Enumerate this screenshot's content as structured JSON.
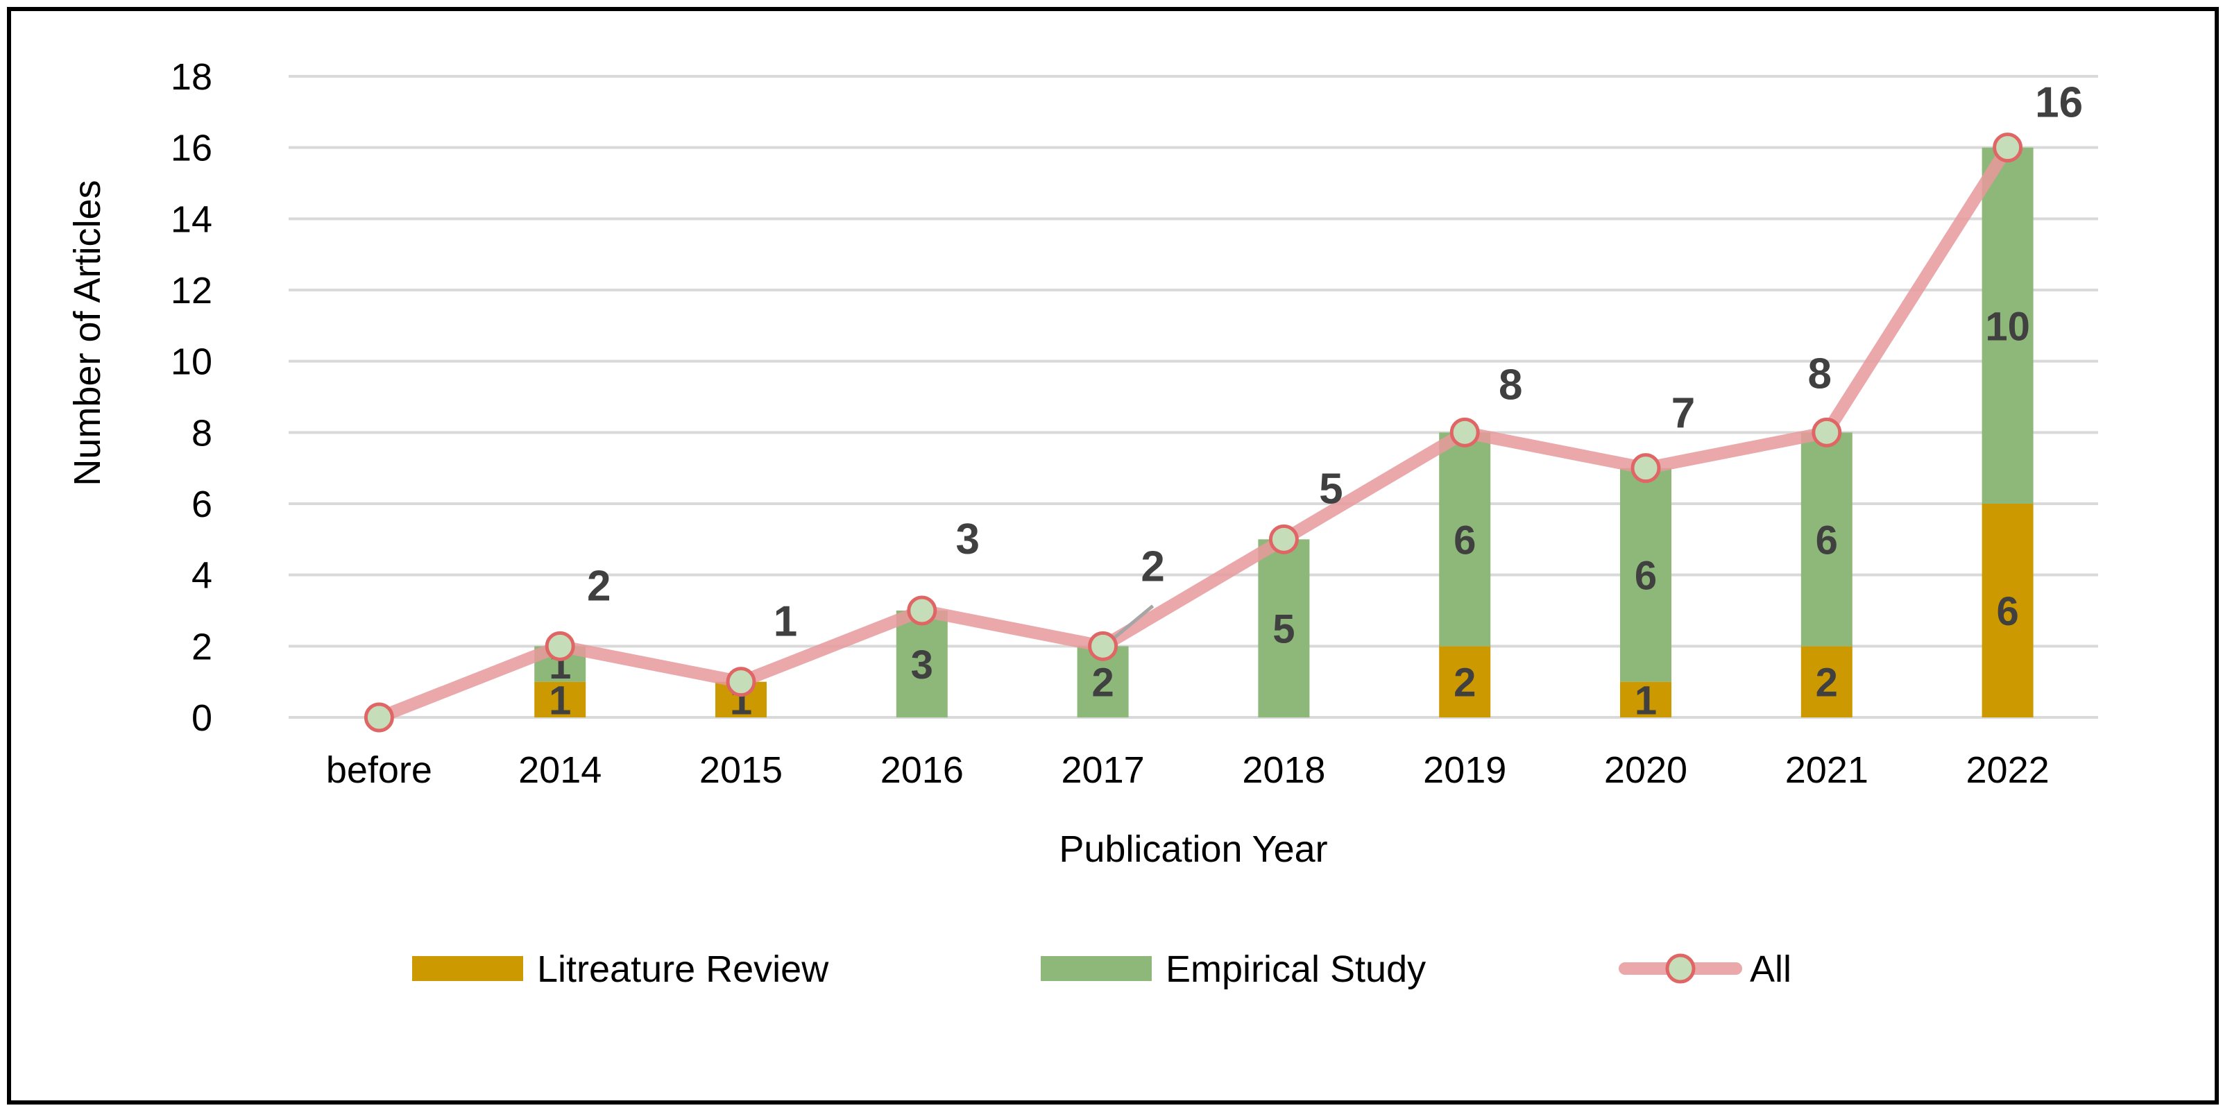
{
  "chart_data": {
    "type": "bar",
    "stacked": true,
    "categories": [
      "before",
      "2014",
      "2015",
      "2016",
      "2017",
      "2018",
      "2019",
      "2020",
      "2021",
      "2022"
    ],
    "series": [
      {
        "name": "Litreature Review",
        "type": "bar",
        "color": "#CC9900",
        "values": [
          0,
          1,
          1,
          0,
          0,
          0,
          2,
          1,
          2,
          6
        ]
      },
      {
        "name": "Empirical Study",
        "type": "bar",
        "color": "#8DB87A",
        "values": [
          0,
          1,
          0,
          3,
          2,
          5,
          6,
          6,
          6,
          10
        ]
      },
      {
        "name": "All",
        "type": "line",
        "color": "#E8999B",
        "marker_fill": "#C6DDB9",
        "values": [
          0,
          2,
          1,
          3,
          2,
          5,
          8,
          7,
          8,
          16
        ]
      }
    ],
    "xlabel": "Publication Year",
    "ylabel": "Number of Articles",
    "ylim": [
      0,
      18
    ],
    "yticks": [
      0,
      2,
      4,
      6,
      8,
      10,
      12,
      14,
      16,
      18
    ],
    "grid": true,
    "legend_position": "bottom"
  }
}
